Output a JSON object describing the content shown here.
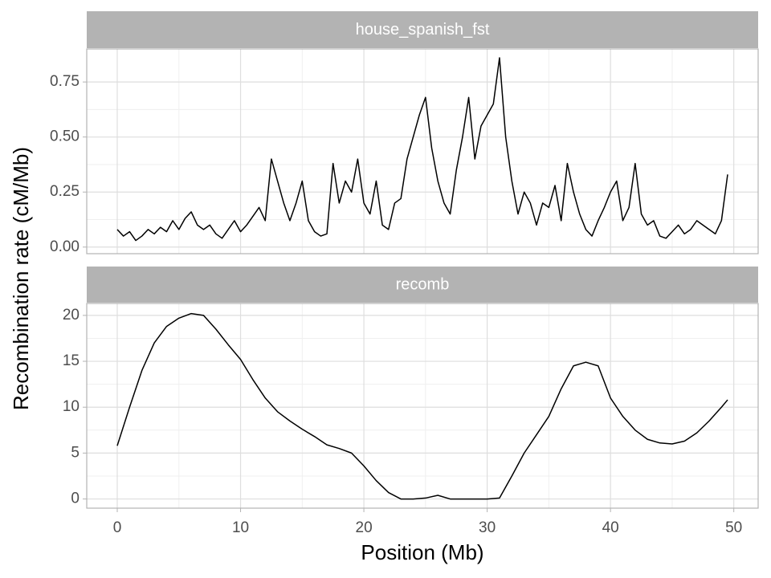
{
  "axis_labels": {
    "x": "Position (Mb)",
    "y": "Recombination rate (cM/Mb)"
  },
  "chart_data": [
    {
      "type": "line",
      "title": "house_spanish_fst",
      "color": "#000000",
      "x": [
        0,
        0.5,
        1,
        1.5,
        2,
        2.5,
        3,
        3.5,
        4,
        4.5,
        5,
        5.5,
        6,
        6.5,
        7,
        7.5,
        8,
        8.5,
        9,
        9.5,
        10,
        10.5,
        11,
        11.5,
        12,
        12.5,
        13,
        13.5,
        14,
        14.5,
        15,
        15.5,
        16,
        16.5,
        17,
        17.5,
        18,
        18.5,
        19,
        19.5,
        20,
        20.5,
        21,
        21.5,
        22,
        22.5,
        23,
        23.5,
        24,
        24.5,
        25,
        25.5,
        26,
        26.5,
        27,
        27.5,
        28,
        28.5,
        29,
        29.5,
        30,
        30.5,
        31,
        31.5,
        32,
        32.5,
        33,
        33.5,
        34,
        34.5,
        35,
        35.5,
        36,
        36.5,
        37,
        37.5,
        38,
        38.5,
        39,
        39.5,
        40,
        40.5,
        41,
        41.5,
        42,
        42.5,
        43,
        43.5,
        44,
        44.5,
        45,
        45.5,
        46,
        46.5,
        47,
        47.5,
        48,
        48.5,
        49,
        49.5
      ],
      "values": [
        0.08,
        0.05,
        0.07,
        0.03,
        0.05,
        0.08,
        0.06,
        0.09,
        0.07,
        0.12,
        0.08,
        0.13,
        0.16,
        0.1,
        0.08,
        0.1,
        0.06,
        0.04,
        0.08,
        0.12,
        0.07,
        0.1,
        0.14,
        0.18,
        0.12,
        0.4,
        0.3,
        0.2,
        0.12,
        0.2,
        0.3,
        0.12,
        0.07,
        0.05,
        0.06,
        0.38,
        0.2,
        0.3,
        0.25,
        0.4,
        0.2,
        0.15,
        0.3,
        0.1,
        0.08,
        0.2,
        0.22,
        0.4,
        0.5,
        0.6,
        0.68,
        0.45,
        0.3,
        0.2,
        0.15,
        0.35,
        0.5,
        0.68,
        0.4,
        0.55,
        0.6,
        0.65,
        0.86,
        0.5,
        0.3,
        0.15,
        0.25,
        0.2,
        0.1,
        0.2,
        0.18,
        0.28,
        0.12,
        0.38,
        0.25,
        0.15,
        0.08,
        0.05,
        0.12,
        0.18,
        0.25,
        0.3,
        0.12,
        0.18,
        0.38,
        0.15,
        0.1,
        0.12,
        0.05,
        0.04,
        0.07,
        0.1,
        0.06,
        0.08,
        0.12,
        0.1,
        0.08,
        0.06,
        0.12,
        0.33
      ],
      "xlim": [
        -2.475,
        51.975
      ],
      "xticks": [
        0,
        10,
        20,
        30,
        40,
        50
      ],
      "ylim": [
        -0.03,
        0.9
      ],
      "yticks": [
        {
          "value": 0,
          "label": "0.00"
        },
        {
          "value": 0.25,
          "label": "0.25"
        },
        {
          "value": 0.5,
          "label": "0.50"
        },
        {
          "value": 0.75,
          "label": "0.75"
        }
      ],
      "grid": true,
      "minor_grid": true
    },
    {
      "type": "line",
      "title": "recomb",
      "color": "#000000",
      "x": [
        0,
        1,
        2,
        3,
        4,
        5,
        6,
        7,
        8,
        9,
        10,
        11,
        12,
        13,
        14,
        15,
        16,
        17,
        18,
        19,
        20,
        21,
        22,
        23,
        24,
        25,
        26,
        27,
        28,
        29,
        30,
        31,
        32,
        33,
        34,
        35,
        36,
        37,
        38,
        39,
        40,
        41,
        42,
        43,
        44,
        45,
        46,
        47,
        48,
        49,
        49.5
      ],
      "values": [
        5.8,
        10,
        14,
        17,
        18.8,
        19.7,
        20.2,
        20,
        18.5,
        16.8,
        15.2,
        13,
        11,
        9.5,
        8.5,
        7.6,
        6.8,
        5.9,
        5.5,
        5,
        3.6,
        2,
        0.7,
        0,
        0,
        0.1,
        0.4,
        0,
        0,
        0,
        0,
        0.1,
        2.5,
        5,
        7,
        9,
        12,
        14.5,
        14.9,
        14.5,
        11,
        9,
        7.5,
        6.5,
        6.1,
        6,
        6.3,
        7.2,
        8.5,
        10,
        10.8
      ],
      "xlim": [
        -2.475,
        51.975
      ],
      "xticks": [
        0,
        10,
        20,
        30,
        40,
        50
      ],
      "ylim": [
        -1.0,
        21.3
      ],
      "yticks": [
        0,
        5,
        10,
        15,
        20
      ],
      "grid": true,
      "minor_grid": true
    }
  ]
}
